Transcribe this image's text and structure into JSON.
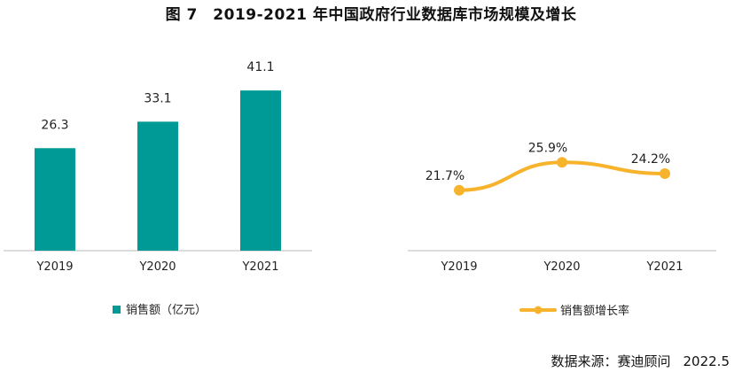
{
  "title": "图 7　2019-2021 年中国政府行业数据库市场规模及增长",
  "chart_data": [
    {
      "type": "bar",
      "categories": [
        "Y2019",
        "Y2020",
        "Y2021"
      ],
      "series": [
        {
          "name": "销售额（亿元）",
          "values": [
            26.3,
            33.1,
            41.1
          ],
          "color": "#009a96"
        }
      ],
      "value_labels": [
        "26.3",
        "33.1",
        "41.1"
      ],
      "ylim": [
        0,
        45
      ],
      "grid": false,
      "legend": "bottom"
    },
    {
      "type": "line",
      "categories": [
        "Y2019",
        "Y2020",
        "Y2021"
      ],
      "series": [
        {
          "name": "销售额增长率",
          "values": [
            21.7,
            25.9,
            24.2
          ],
          "color": "#f7b32b"
        }
      ],
      "value_labels": [
        "21.7%",
        "25.9%",
        "24.2%"
      ],
      "ylim": [
        0,
        40
      ],
      "grid": false,
      "legend": "bottom"
    }
  ],
  "source": {
    "label": "数据来源：赛迪顾问",
    "date": "2022.5"
  }
}
